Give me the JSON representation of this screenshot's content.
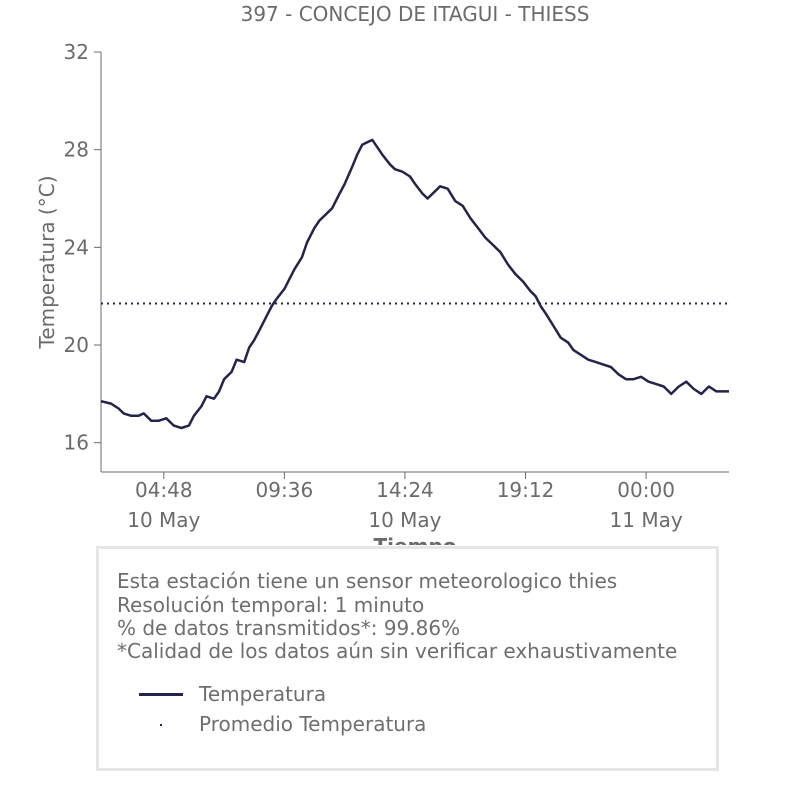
{
  "chart_data": {
    "type": "line",
    "title": "397 - CONCEJO DE ITAGUI - THIESS",
    "xlabel": "Tiempo",
    "ylabel": "Temperatura (°C)",
    "ylim": [
      14.8,
      32
    ],
    "xlim_hours": [
      2.3,
      27.3
    ],
    "yticks": [
      16,
      20,
      24,
      28,
      32
    ],
    "xticks": [
      {
        "hour": 4.8,
        "time": "04:48",
        "date": "10 May"
      },
      {
        "hour": 9.6,
        "time": "09:36",
        "date": ""
      },
      {
        "hour": 14.4,
        "time": "14:24",
        "date": "10 May"
      },
      {
        "hour": 19.2,
        "time": "19:12",
        "date": ""
      },
      {
        "hour": 24.0,
        "time": "00:00",
        "date": "11 May"
      }
    ],
    "grid": false,
    "line_color": "#24244a",
    "series": [
      {
        "name": "Temperatura",
        "style": "solid",
        "x_hours": [
          2.3,
          2.7,
          3.0,
          3.2,
          3.5,
          3.8,
          4.0,
          4.3,
          4.6,
          4.9,
          5.2,
          5.5,
          5.8,
          6.0,
          6.3,
          6.5,
          6.8,
          7.0,
          7.2,
          7.5,
          7.7,
          8.0,
          8.2,
          8.4,
          8.6,
          8.9,
          9.1,
          9.3,
          9.6,
          9.8,
          10.0,
          10.3,
          10.5,
          10.8,
          11.0,
          11.3,
          11.5,
          11.8,
          12.0,
          12.3,
          12.5,
          12.7,
          12.9,
          13.1,
          13.3,
          13.5,
          13.8,
          14.0,
          14.3,
          14.6,
          14.8,
          15.1,
          15.3,
          15.6,
          15.8,
          16.1,
          16.4,
          16.7,
          17.0,
          17.3,
          17.6,
          17.9,
          18.2,
          18.5,
          18.8,
          19.1,
          19.4,
          19.6,
          19.8,
          20.0,
          20.3,
          20.6,
          20.9,
          21.1,
          21.4,
          21.7,
          22.0,
          22.3,
          22.6,
          22.9,
          23.2,
          23.5,
          23.8,
          24.1,
          24.4,
          24.7,
          25.0,
          25.3,
          25.6,
          25.9,
          26.2,
          26.5,
          26.8,
          27.0,
          27.3
        ],
        "values": [
          17.7,
          17.6,
          17.4,
          17.2,
          17.1,
          17.1,
          17.2,
          16.9,
          16.9,
          17.0,
          16.7,
          16.6,
          16.7,
          17.1,
          17.5,
          17.9,
          17.8,
          18.1,
          18.6,
          18.9,
          19.4,
          19.3,
          19.9,
          20.2,
          20.6,
          21.2,
          21.6,
          21.9,
          22.3,
          22.7,
          23.1,
          23.6,
          24.2,
          24.8,
          25.1,
          25.4,
          25.6,
          26.2,
          26.6,
          27.3,
          27.8,
          28.2,
          28.3,
          28.4,
          28.1,
          27.8,
          27.4,
          27.2,
          27.1,
          26.9,
          26.6,
          26.2,
          26.0,
          26.3,
          26.5,
          26.4,
          25.9,
          25.7,
          25.2,
          24.8,
          24.4,
          24.1,
          23.8,
          23.3,
          22.9,
          22.6,
          22.2,
          22.0,
          21.6,
          21.3,
          20.8,
          20.3,
          20.1,
          19.8,
          19.6,
          19.4,
          19.3,
          19.2,
          19.1,
          18.8,
          18.6,
          18.6,
          18.7,
          18.5,
          18.4,
          18.3,
          18.0,
          18.3,
          18.5,
          18.2,
          18.0,
          18.3,
          18.1,
          18.1,
          18.1
        ]
      },
      {
        "name": "Promedio Temperatura",
        "style": "dotted",
        "value": 21.7
      }
    ]
  },
  "info": {
    "lines": [
      "Esta estación tiene un sensor meteorologico thies",
      "Resolución temporal: 1 minuto",
      "% de datos transmitidos*: 99.86%",
      "*Calidad de los datos aún sin verificar exhaustivamente"
    ],
    "legend": {
      "line_label": "Temperatura",
      "mean_label": "Promedio Temperatura"
    }
  }
}
